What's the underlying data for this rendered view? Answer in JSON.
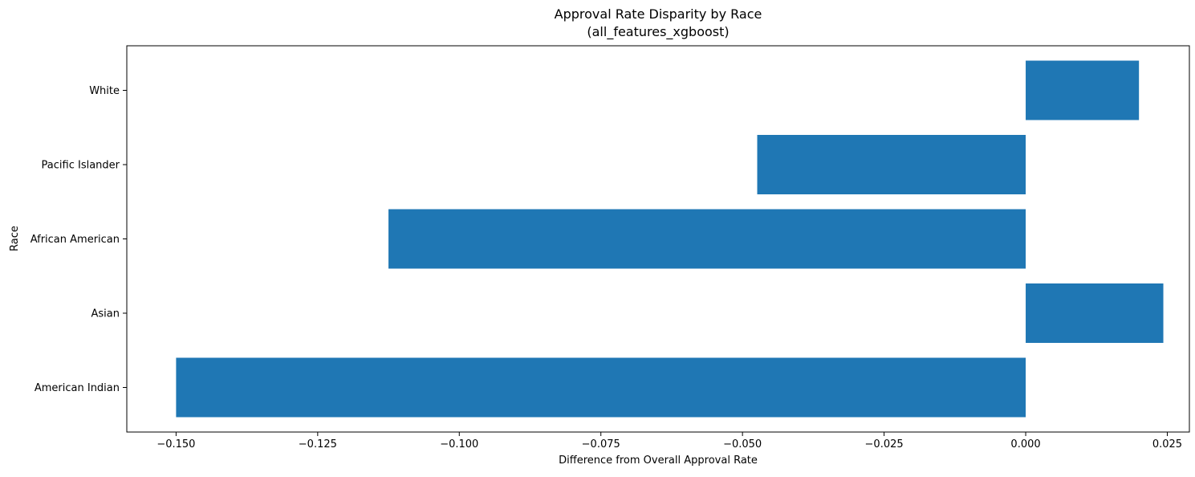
{
  "chart_data": {
    "type": "bar",
    "orientation": "horizontal",
    "title": "Approval Rate Disparity by Race",
    "subtitle": "(all_features_xgboost)",
    "xlabel": "Difference from Overall Approval Rate",
    "ylabel": "Race",
    "categories": [
      "American Indian",
      "Asian",
      "African American",
      "Pacific Islander",
      "White"
    ],
    "values": [
      -0.15,
      0.0243,
      -0.1125,
      -0.0474,
      0.02
    ],
    "xlim": [
      -0.1587,
      0.0289
    ],
    "xticks": [
      -0.15,
      -0.125,
      -0.1,
      -0.075,
      -0.05,
      -0.025,
      0.0,
      0.025
    ],
    "xtick_labels": [
      "−0.150",
      "−0.125",
      "−0.100",
      "−0.075",
      "−0.050",
      "−0.025",
      "0.000",
      "0.025"
    ],
    "bar_color": "#1f77b4",
    "grid": false,
    "legend": "none"
  }
}
